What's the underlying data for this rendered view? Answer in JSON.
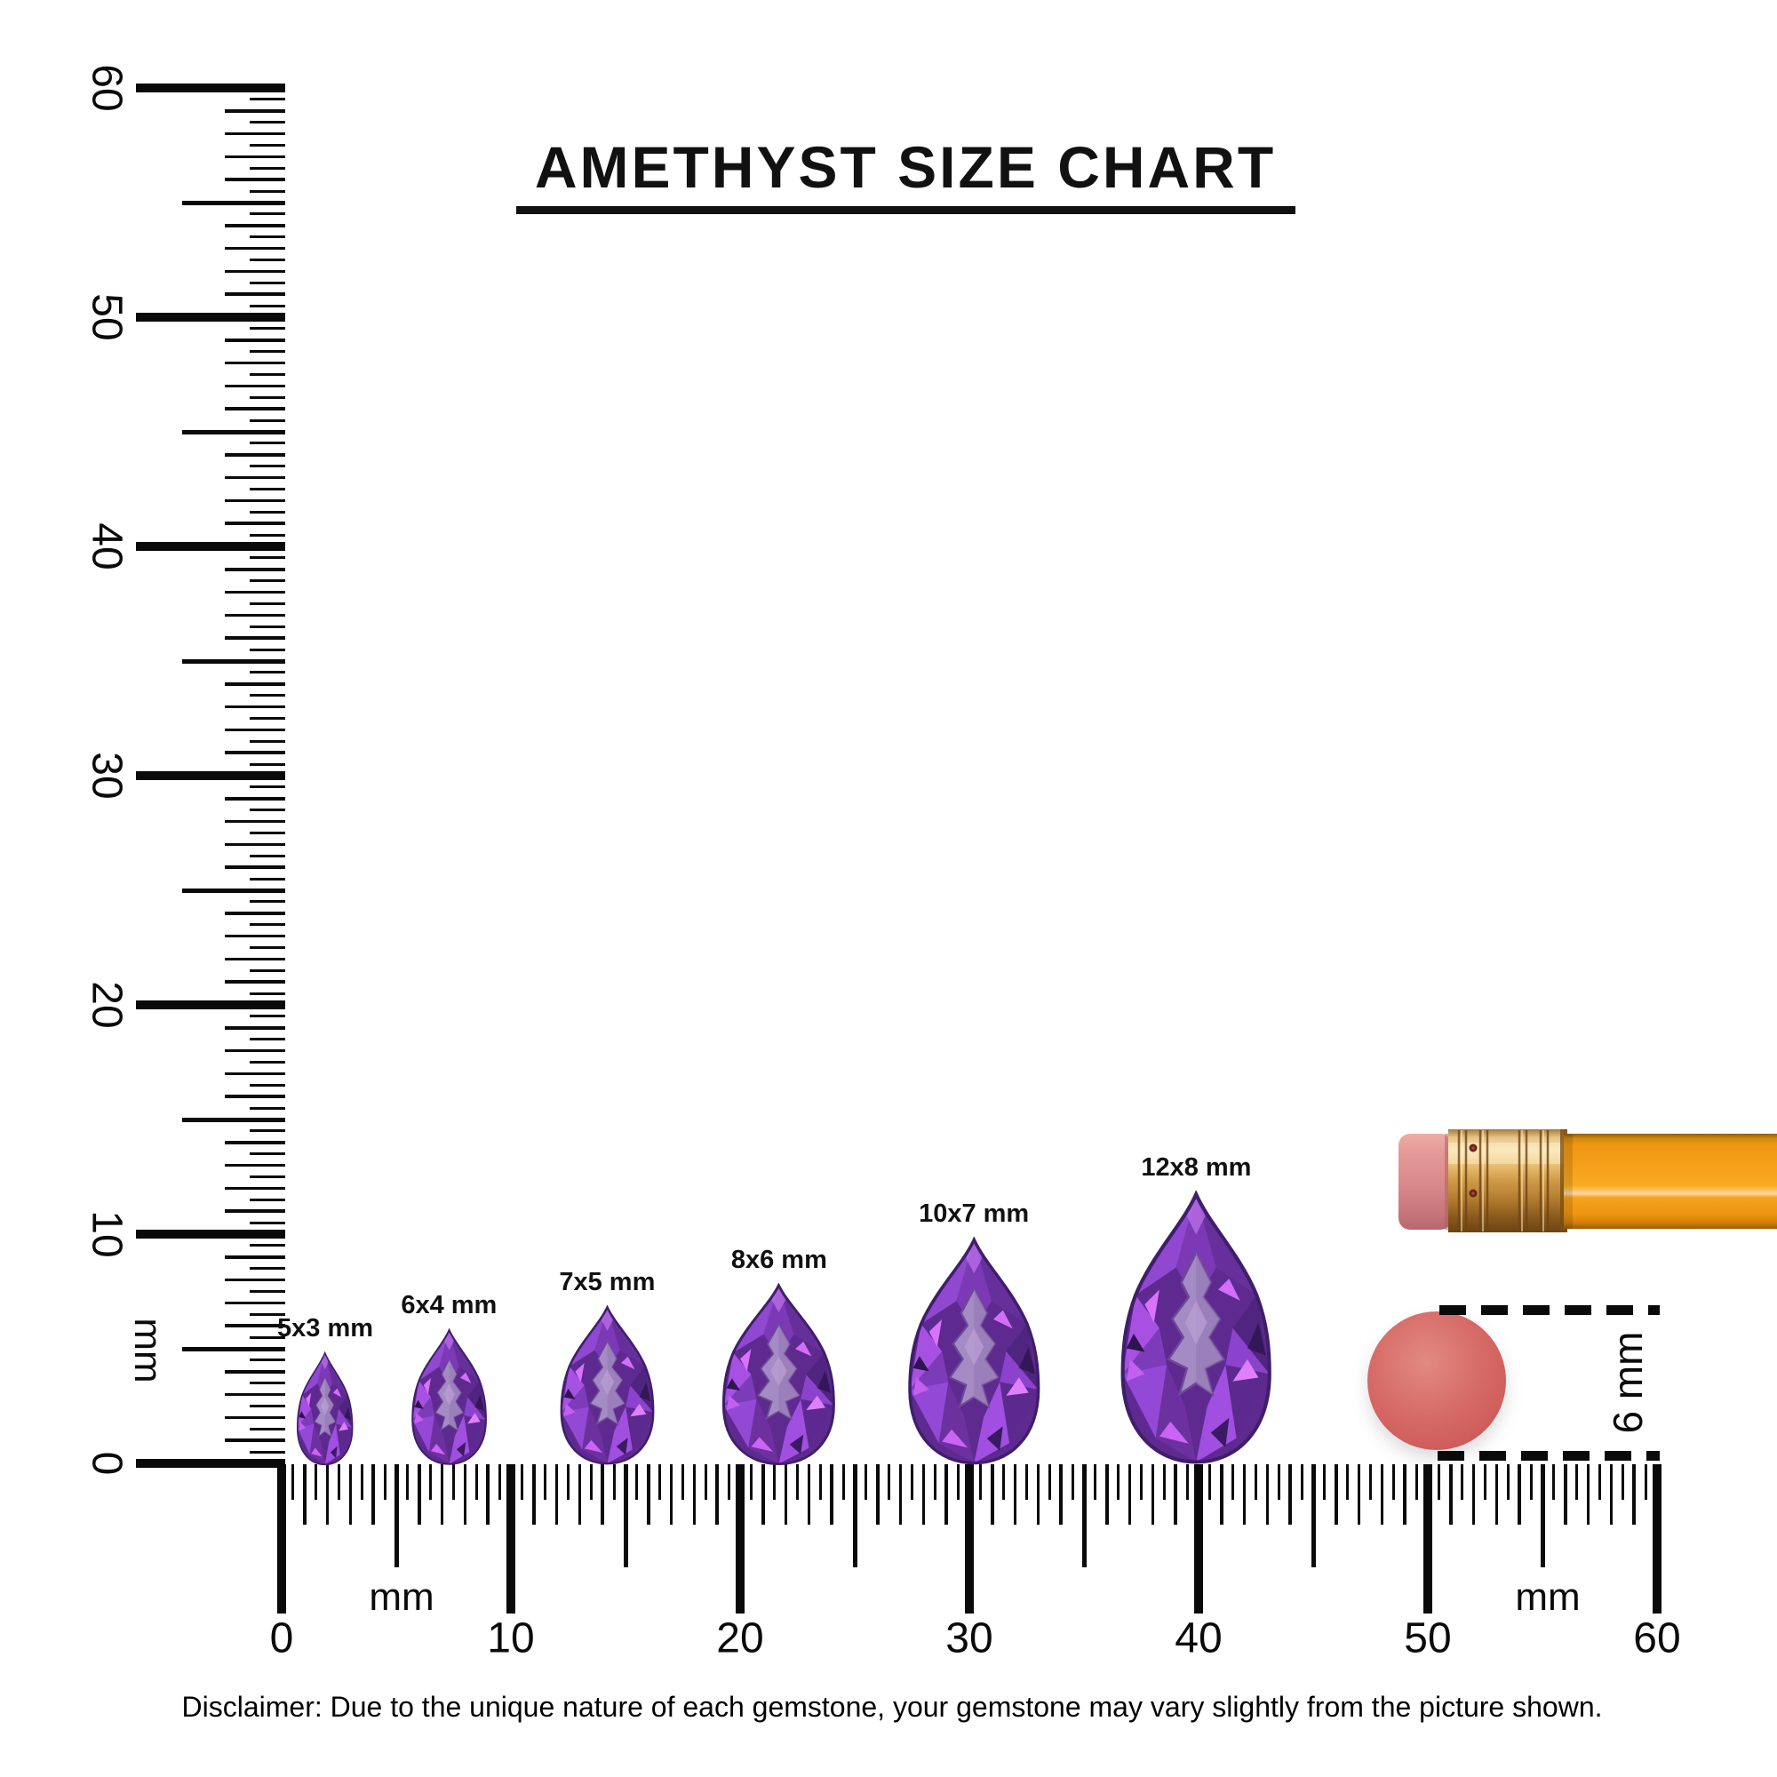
{
  "title": {
    "text": "AMETHYST SIZE CHART"
  },
  "rulers": {
    "unit_label": "mm",
    "vertical": {
      "min_mm": 0,
      "max_mm": 60,
      "labels": [
        "0",
        "10",
        "20",
        "30",
        "40",
        "50",
        "60"
      ]
    },
    "horizontal": {
      "min_mm": 0,
      "max_mm": 60,
      "labels": [
        "0",
        "10",
        "20",
        "30",
        "40",
        "50",
        "60"
      ]
    }
  },
  "gems": [
    {
      "label": "5x3 mm",
      "length_mm": 5,
      "width_mm": 3,
      "center_mm": 1.9
    },
    {
      "label": "6x4 mm",
      "length_mm": 6,
      "width_mm": 4,
      "center_mm": 7.3
    },
    {
      "label": "7x5 mm",
      "length_mm": 7,
      "width_mm": 5,
      "center_mm": 14.2
    },
    {
      "label": "8x6 mm",
      "length_mm": 8,
      "width_mm": 6,
      "center_mm": 21.7
    },
    {
      "label": "10x7 mm",
      "length_mm": 10,
      "width_mm": 7,
      "center_mm": 30.2
    },
    {
      "label": "12x8 mm",
      "length_mm": 12,
      "width_mm": 8,
      "center_mm": 39.9
    }
  ],
  "reference_objects": {
    "pencil": {
      "name": "pencil with eraser"
    },
    "eraser_disc": {
      "label": "6 mm",
      "diameter_mm": 6
    }
  },
  "disclaimer": "Disclaimer: Due to the unique nature of each gemstone, your gemstone may vary slightly from the picture shown.",
  "colors": {
    "ink": "#0a0a0a",
    "amethyst_bright": "#d973fb",
    "amethyst_mid": "#7b39b5",
    "amethyst_dark": "#3a1761",
    "amethyst_table": "#a58bc4",
    "pencil_body": "#f59d15",
    "pencil_ferrule": "#d9a050",
    "pencil_eraser": "#dd8f8e",
    "eraser_disc": "#d4615e"
  }
}
